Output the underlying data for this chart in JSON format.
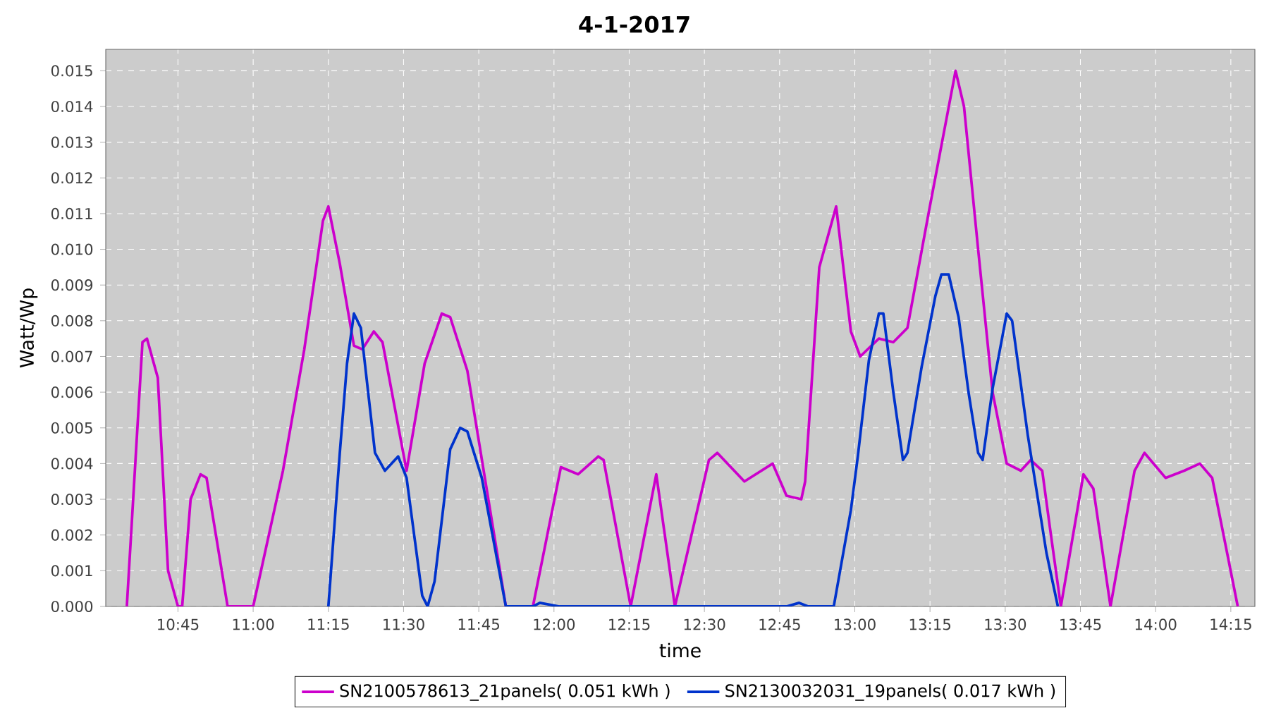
{
  "chart_data": {
    "type": "line",
    "title": "4-1-2017",
    "xlabel": "time",
    "ylabel": "Watt/Wp",
    "xlim": [
      10.51,
      14.33
    ],
    "ylim": [
      0,
      0.0156
    ],
    "xticks": [
      {
        "value": 10.75,
        "label": "10:45"
      },
      {
        "value": 11.0,
        "label": "11:00"
      },
      {
        "value": 11.25,
        "label": "11:15"
      },
      {
        "value": 11.5,
        "label": "11:30"
      },
      {
        "value": 11.75,
        "label": "11:45"
      },
      {
        "value": 12.0,
        "label": "12:00"
      },
      {
        "value": 12.25,
        "label": "12:15"
      },
      {
        "value": 12.5,
        "label": "12:30"
      },
      {
        "value": 12.75,
        "label": "12:45"
      },
      {
        "value": 13.0,
        "label": "13:00"
      },
      {
        "value": 13.25,
        "label": "13:15"
      },
      {
        "value": 13.5,
        "label": "13:30"
      },
      {
        "value": 13.75,
        "label": "13:45"
      },
      {
        "value": 14.0,
        "label": "14:00"
      },
      {
        "value": 14.25,
        "label": "14:15"
      }
    ],
    "yticks": [
      {
        "value": 0,
        "label": "0.000"
      },
      {
        "value": 0.001,
        "label": "0.001"
      },
      {
        "value": 0.002,
        "label": "0.002"
      },
      {
        "value": 0.003,
        "label": "0.003"
      },
      {
        "value": 0.004,
        "label": "0.004"
      },
      {
        "value": 0.005,
        "label": "0.005"
      },
      {
        "value": 0.006,
        "label": "0.006"
      },
      {
        "value": 0.007,
        "label": "0.007"
      },
      {
        "value": 0.008,
        "label": "0.008"
      },
      {
        "value": 0.009,
        "label": "0.009"
      },
      {
        "value": 0.01,
        "label": "0.010"
      },
      {
        "value": 0.011,
        "label": "0.011"
      },
      {
        "value": 0.012,
        "label": "0.012"
      },
      {
        "value": 0.013,
        "label": "0.013"
      },
      {
        "value": 0.014,
        "label": "0.014"
      },
      {
        "value": 0.015,
        "label": "0.015"
      }
    ],
    "grid": true,
    "legend": "bottom",
    "line_style": "solid",
    "series": [
      {
        "name": "SN2100578613_21panels( 0.051 kWh )",
        "color": "#cc00cc",
        "x": [
          10.58,
          10.632,
          10.647,
          10.683,
          10.717,
          10.75,
          10.764,
          10.792,
          10.825,
          10.845,
          10.915,
          11.0,
          11.099,
          11.17,
          11.232,
          11.25,
          11.288,
          11.335,
          11.363,
          11.401,
          11.43,
          11.51,
          11.57,
          11.627,
          11.655,
          11.712,
          11.84,
          11.93,
          12.023,
          12.08,
          12.147,
          12.165,
          12.255,
          12.34,
          12.402,
          12.515,
          12.543,
          12.633,
          12.727,
          12.773,
          12.822,
          12.835,
          12.882,
          12.938,
          12.987,
          13.018,
          13.08,
          13.128,
          13.175,
          13.245,
          13.335,
          13.363,
          13.41,
          13.458,
          13.505,
          13.552,
          13.585,
          13.623,
          13.652,
          13.685,
          13.76,
          13.793,
          13.85,
          13.93,
          13.963,
          14.033,
          14.095,
          14.147,
          14.188,
          14.273
        ],
        "values": [
          0,
          0.0074,
          0.0075,
          0.0064,
          0.001,
          0,
          0,
          0.003,
          0.0037,
          0.0036,
          0,
          0,
          0.0038,
          0.0072,
          0.0108,
          0.0112,
          0.0096,
          0.0073,
          0.0072,
          0.0077,
          0.0074,
          0.0038,
          0.0068,
          0.0082,
          0.0081,
          0.0066,
          0,
          0,
          0.0039,
          0.0037,
          0.0042,
          0.0041,
          0,
          0.0037,
          0,
          0.0041,
          0.0043,
          0.0035,
          0.004,
          0.0031,
          0.003,
          0.0035,
          0.0095,
          0.0112,
          0.0077,
          0.007,
          0.0075,
          0.0074,
          0.0078,
          0.011,
          0.015,
          0.014,
          0.01,
          0.006,
          0.004,
          0.0038,
          0.0041,
          0.0038,
          0.002,
          0,
          0.0037,
          0.0033,
          0,
          0.0038,
          0.0043,
          0.0036,
          0.0038,
          0.004,
          0.0036,
          0
        ]
      },
      {
        "name": "SN2130032031_19panels( 0.017 kWh )",
        "color": "#0033cc",
        "x": [
          11.25,
          11.288,
          11.312,
          11.335,
          11.358,
          11.405,
          11.438,
          11.482,
          11.51,
          11.562,
          11.58,
          11.603,
          11.655,
          11.688,
          11.712,
          11.76,
          11.84,
          11.93,
          11.953,
          12.018,
          12.773,
          12.815,
          12.845,
          12.93,
          12.987,
          13.01,
          13.047,
          13.08,
          13.095,
          13.128,
          13.16,
          13.175,
          13.222,
          13.268,
          13.288,
          13.312,
          13.345,
          13.378,
          13.41,
          13.425,
          13.458,
          13.505,
          13.523,
          13.575,
          13.637,
          13.675
        ],
        "values": [
          0,
          0.0043,
          0.0068,
          0.0082,
          0.0078,
          0.0043,
          0.0038,
          0.0042,
          0.0036,
          0.0003,
          0,
          0.0007,
          0.0044,
          0.005,
          0.0049,
          0.0036,
          0,
          0,
          0.0001,
          0,
          0,
          0.0001,
          0,
          0,
          0.0027,
          0.0042,
          0.0069,
          0.0082,
          0.0082,
          0.006,
          0.0041,
          0.0043,
          0.0067,
          0.0087,
          0.0093,
          0.0093,
          0.0081,
          0.006,
          0.0043,
          0.0041,
          0.0061,
          0.0082,
          0.008,
          0.0048,
          0.0015,
          0
        ]
      }
    ]
  }
}
